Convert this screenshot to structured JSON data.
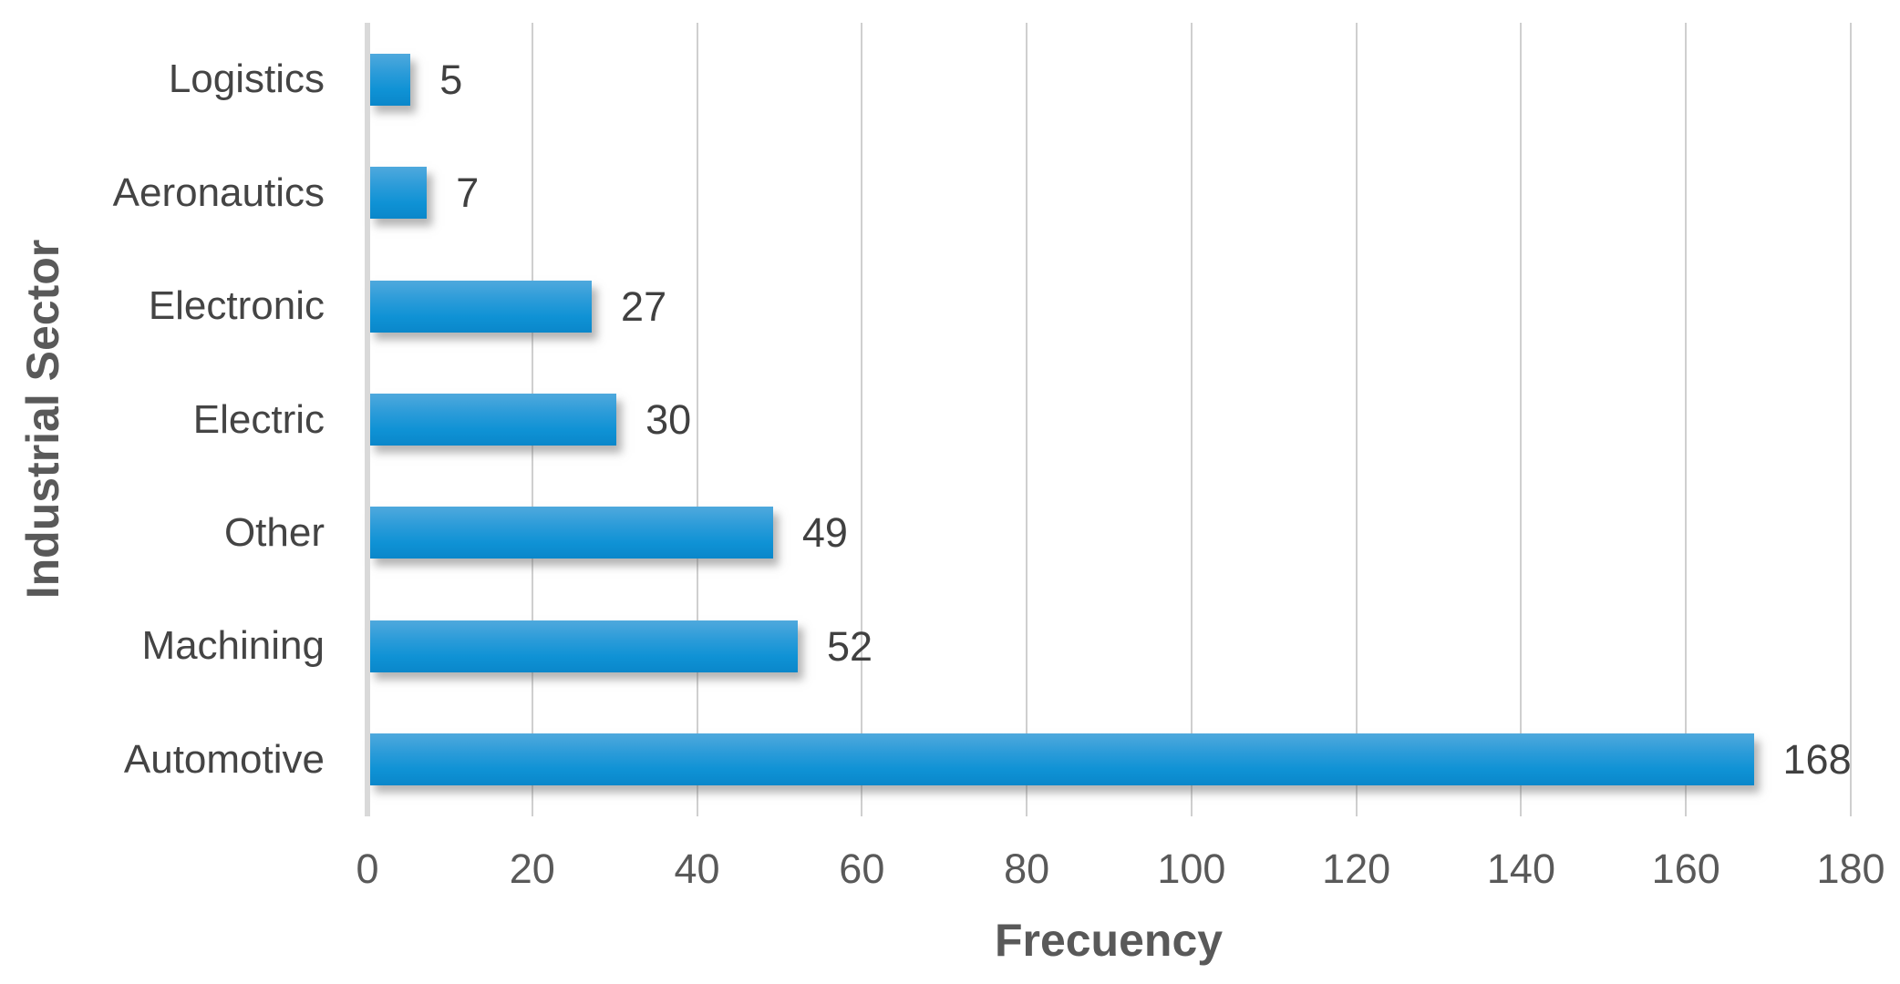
{
  "chart_data": {
    "type": "bar",
    "orientation": "horizontal",
    "title": "",
    "xlabel": "Frecuency",
    "ylabel": "Industrial Sector",
    "categories": [
      "Logistics",
      "Aeronautics",
      "Electronic",
      "Electric",
      "Other",
      "Machining",
      "Automotive"
    ],
    "values": [
      5,
      7,
      27,
      30,
      49,
      52,
      168
    ],
    "data_labels": [
      "5",
      "7",
      "27",
      "30",
      "49",
      "52",
      "168"
    ],
    "xlim": [
      0,
      180
    ],
    "x_ticks": [
      0,
      20,
      40,
      60,
      80,
      100,
      120,
      140,
      160,
      180
    ],
    "grid": "vertical-major",
    "legend": "none",
    "bar_color_top": "#4FA9DD",
    "bar_color_bottom": "#0A87CA",
    "gridline_color": "#CFCFCF",
    "axis_line_color": "#D9D9D9",
    "tick_label_color": "#595959",
    "category_label_color": "#444444",
    "value_label_color": "#404040",
    "axis_title_color": "#595959"
  }
}
